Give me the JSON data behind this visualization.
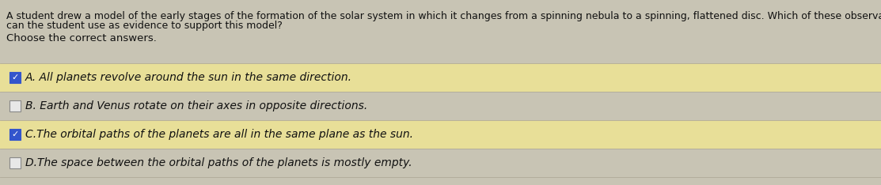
{
  "background_color": "#c8c4b4",
  "question_text_line1": "A student drew a model of the early stages of the formation of the solar system in which it changes from a spinning nebula to a spinning, flattened disc. Which of these observations",
  "question_text_line2": "can the student use as evidence to support this model?",
  "subheader_text": "Choose the correct answers.",
  "options": [
    {
      "label": "A. All planets revolve around the sun in the same direction.",
      "checked": true,
      "highlighted": true
    },
    {
      "label": "B. Earth and Venus rotate on their axes in opposite directions.",
      "checked": false,
      "highlighted": false
    },
    {
      "label": "C.The orbital paths of the planets are all in the same plane as the sun.",
      "checked": true,
      "highlighted": true
    },
    {
      "label": "D.The space between the orbital paths of the planets is mostly empty.",
      "checked": false,
      "highlighted": false
    }
  ],
  "highlight_color": "#e8df98",
  "plain_bg_color": "#c8c4b4",
  "checkbox_checked_color": "#3355cc",
  "checkbox_unchecked_color": "#e8e8e8",
  "checkbox_border_color": "#888888",
  "text_color": "#111111",
  "question_fontsize": 9.0,
  "option_fontsize": 10.0,
  "subheader_fontsize": 9.5,
  "fig_width": 11.13,
  "fig_height": 2.34,
  "dpi": 100
}
